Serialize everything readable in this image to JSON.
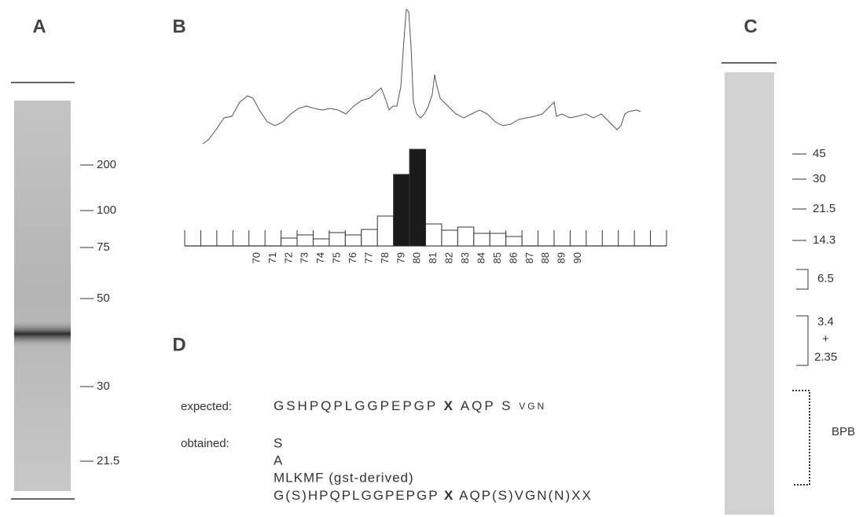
{
  "panels": {
    "a": {
      "label": "A",
      "markers": [
        "200",
        "100",
        "75",
        "50",
        "30",
        "21.5"
      ]
    },
    "b": {
      "label": "B",
      "fractions": [
        "70",
        "71",
        "72",
        "73",
        "74",
        "75",
        "76",
        "77",
        "78",
        "79",
        "80",
        "81",
        "82",
        "83",
        "84",
        "85",
        "86",
        "87",
        "88",
        "89",
        "90"
      ],
      "bar_values": [
        null,
        null,
        10,
        14,
        9,
        17,
        14,
        21,
        38,
        91,
        123,
        28,
        20,
        24,
        16,
        16,
        12,
        null,
        null,
        null,
        null
      ],
      "highlighted": [
        "79",
        "80"
      ]
    },
    "c": {
      "label": "C",
      "markers": [
        "45",
        "30",
        "21.5",
        "14.3"
      ],
      "bracket_1": "6.5",
      "bracket_2": [
        "3.4",
        "+",
        "2.35"
      ],
      "bracket_3": "BPB"
    },
    "d": {
      "label": "D",
      "expected_label": "expected:",
      "expected": [
        "GSHPQPLGGPEPGP",
        "X",
        "AQP S",
        "VGN"
      ],
      "obtained_label": "obtained:",
      "obtained": [
        "S",
        "A",
        "MLKMF  (gst-derived)"
      ],
      "obtained_full": [
        "G(S)HPQPLGGPEPGP",
        "X",
        "AQP(S)VGN(N)XX"
      ]
    }
  }
}
